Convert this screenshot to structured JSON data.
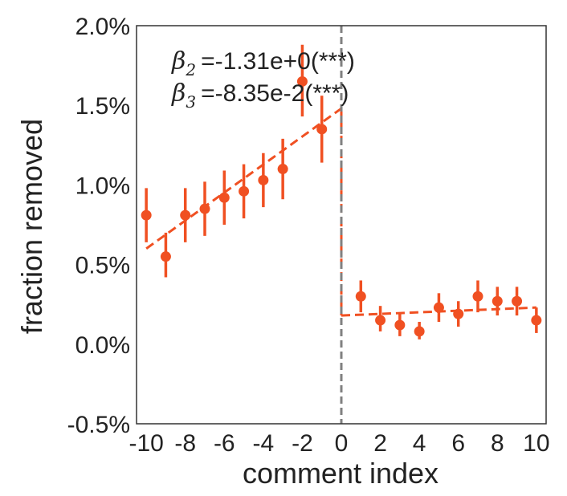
{
  "chart_data": {
    "type": "scatter",
    "xlabel": "comment index",
    "ylabel": "fraction removed",
    "xlim": [
      -10.5,
      10.5
    ],
    "ylim": [
      -0.5,
      2.0
    ],
    "xticks": [
      -10,
      -8,
      -6,
      -4,
      -2,
      0,
      2,
      4,
      6,
      8,
      10
    ],
    "xtick_labels": [
      "-10",
      "-8",
      "-6",
      "-4",
      "-2",
      "0",
      "2",
      "4",
      "6",
      "8",
      "10"
    ],
    "yticks": [
      -0.5,
      0.0,
      0.5,
      1.0,
      1.5,
      2.0
    ],
    "ytick_labels": [
      "-0.5%",
      "0.0%",
      "0.5%",
      "1.0%",
      "1.5%",
      "2.0%"
    ],
    "grid": false,
    "color": "#f05022",
    "vline": {
      "x": 0,
      "color": "#808080",
      "style": "dashed"
    },
    "points": {
      "x": [
        -10,
        -9,
        -8,
        -7,
        -6,
        -5,
        -4,
        -3,
        -2,
        -1,
        1,
        2,
        3,
        4,
        5,
        6,
        7,
        8,
        9,
        10
      ],
      "y": [
        0.81,
        0.55,
        0.81,
        0.85,
        0.92,
        0.96,
        1.03,
        1.1,
        1.65,
        1.35,
        0.3,
        0.15,
        0.12,
        0.08,
        0.23,
        0.19,
        0.3,
        0.27,
        0.27,
        0.15
      ],
      "y_lower": [
        0.64,
        0.42,
        0.64,
        0.68,
        0.75,
        0.79,
        0.86,
        0.91,
        1.43,
        1.14,
        0.2,
        0.08,
        0.05,
        0.03,
        0.14,
        0.11,
        0.2,
        0.18,
        0.18,
        0.07
      ],
      "y_upper": [
        0.98,
        0.7,
        0.98,
        1.02,
        1.09,
        1.13,
        1.2,
        1.29,
        1.88,
        1.56,
        0.4,
        0.24,
        0.2,
        0.14,
        0.32,
        0.27,
        0.4,
        0.36,
        0.36,
        0.23
      ]
    },
    "fit_lines": [
      {
        "x": [
          -10,
          0
        ],
        "y": [
          0.6,
          1.48
        ]
      },
      {
        "x": [
          0,
          10
        ],
        "y": [
          1.48,
          0.18
        ],
        "style": "drop"
      },
      {
        "x": [
          0,
          10
        ],
        "y": [
          0.18,
          0.23
        ]
      }
    ],
    "annotations": [
      {
        "symbol": "β",
        "subscript": "2",
        "text": "=-1.31e+0(***)"
      },
      {
        "symbol": "β",
        "subscript": "3",
        "text": "=-8.35e-2(***)"
      }
    ]
  }
}
